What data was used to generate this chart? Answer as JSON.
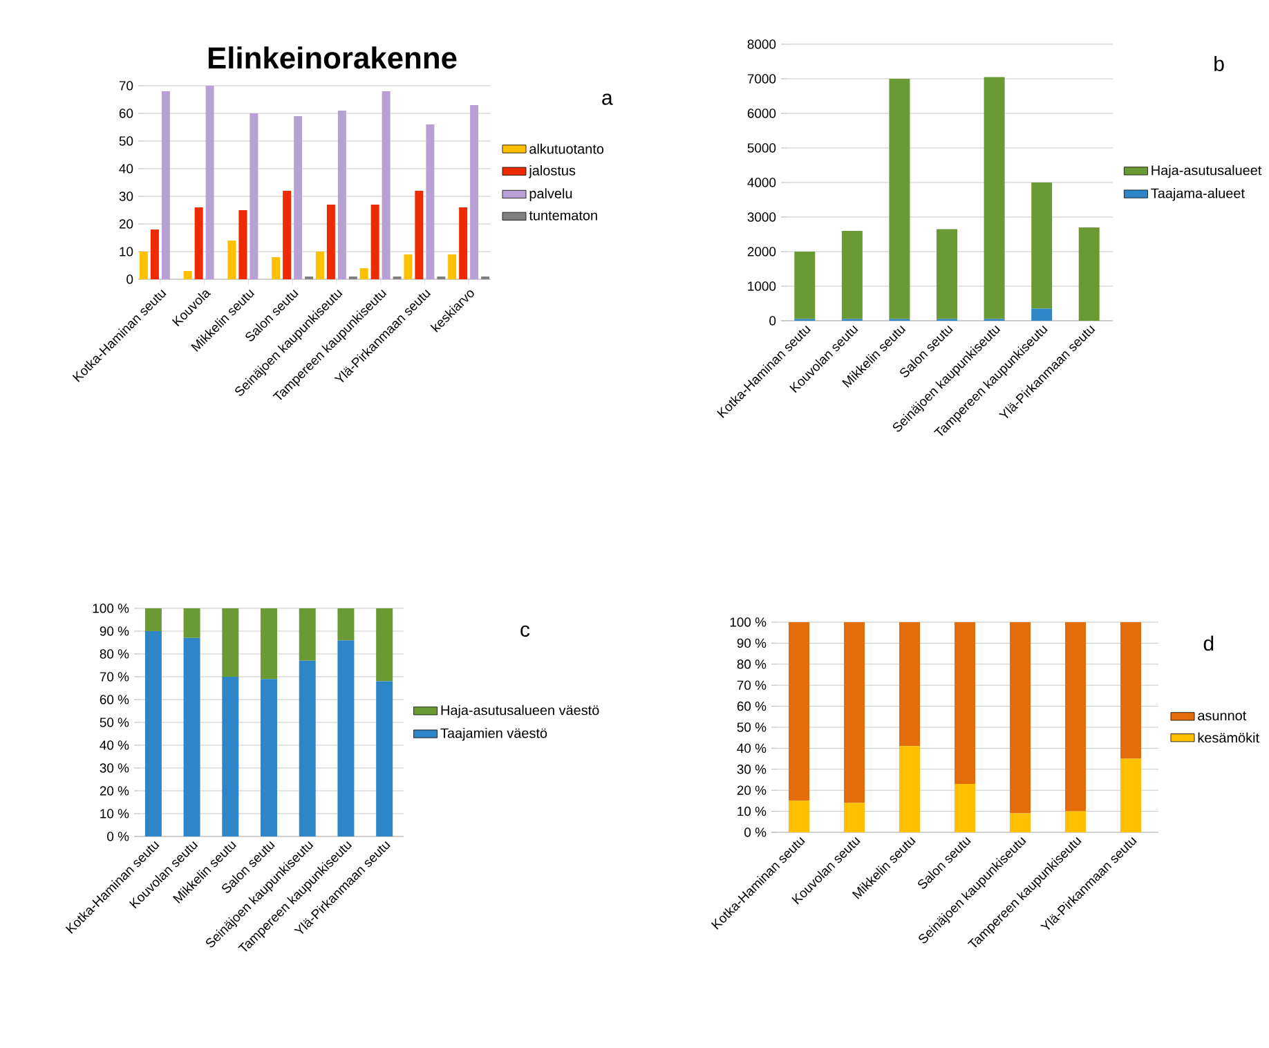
{
  "chart_data": [
    {
      "type": "bar",
      "title": "Elinkeinorakenne",
      "annotations": [
        "a"
      ],
      "categories": [
        "Kotka-Haminan seutu",
        "Kouvola",
        "Mikkelin seutu",
        "Salon seutu",
        "Seinäjoen kaupunkiseutu",
        "Tampereen kaupunkiseutu",
        "Ylä-Pirkanmaan seutu",
        "keskiarvo"
      ],
      "series": [
        {
          "name": "alkutuotanto",
          "color": "#ffc000",
          "values": [
            10,
            3,
            14,
            8,
            10,
            4,
            9,
            9
          ]
        },
        {
          "name": "jalostus",
          "color": "#ee2a00",
          "values": [
            18,
            26,
            25,
            32,
            27,
            27,
            32,
            26
          ]
        },
        {
          "name": "palvelu",
          "color": "#b7a1d4",
          "values": [
            68,
            70,
            60,
            59,
            61,
            68,
            56,
            63
          ]
        },
        {
          "name": "tuntematon",
          "color": "#7f7f7f",
          "values": [
            0,
            0,
            0,
            1,
            1,
            1,
            1,
            1
          ]
        }
      ],
      "ylim": [
        0,
        70
      ],
      "yticks": [
        0,
        10,
        20,
        30,
        40,
        50,
        60,
        70
      ],
      "grid": "y",
      "legend": "right"
    },
    {
      "type": "bar",
      "stacked": true,
      "annotations": [
        "b"
      ],
      "categories": [
        "Kotka-Haminan seutu",
        "Kouvolan seutu",
        "Mikkelin seutu",
        "Salon seutu",
        "Seinäjoen kaupunkiseutu",
        "Tampereen kaupunkiseutu",
        "Ylä-Pirkanmaan seutu"
      ],
      "series": [
        {
          "name": "Taajama-alueet",
          "color": "#2e86c8",
          "values": [
            50,
            50,
            50,
            50,
            50,
            350,
            0
          ]
        },
        {
          "name": "Haja-asutusalueet",
          "color": "#6a9a34",
          "values": [
            1950,
            2550,
            6950,
            2600,
            7000,
            3650,
            2700
          ]
        }
      ],
      "ylim": [
        0,
        8000
      ],
      "yticks": [
        0,
        1000,
        2000,
        3000,
        4000,
        5000,
        6000,
        7000,
        8000
      ],
      "grid": "y",
      "legend": "right"
    },
    {
      "type": "bar",
      "stacked": true,
      "annotations": [
        "c"
      ],
      "categories": [
        "Kotka-Haminan seutu",
        "Kouvolan seutu",
        "Mikkelin seutu",
        "Salon seutu",
        "Seinäjoen kaupunkiseutu",
        "Tampereen kaupunkiseutu",
        "Ylä-Pirkanmaan seutu"
      ],
      "series": [
        {
          "name": "Taajamien väestö",
          "color": "#2e86c8",
          "values": [
            90,
            87,
            70,
            69,
            77,
            86,
            68
          ]
        },
        {
          "name": "Haja-asutusalueen väestö",
          "color": "#6a9a34",
          "values": [
            10,
            13,
            30,
            31,
            23,
            14,
            32
          ]
        }
      ],
      "ylim": [
        0,
        100
      ],
      "yticks": [
        {
          "value": 0,
          "label": "0 %"
        },
        {
          "value": 10,
          "label": "10 %"
        },
        {
          "value": 20,
          "label": "20 %"
        },
        {
          "value": 30,
          "label": "30 %"
        },
        {
          "value": 40,
          "label": "40 %"
        },
        {
          "value": 50,
          "label": "50 %"
        },
        {
          "value": 60,
          "label": "60 %"
        },
        {
          "value": 70,
          "label": "70 %"
        },
        {
          "value": 80,
          "label": "80 %"
        },
        {
          "value": 90,
          "label": "90 %"
        },
        {
          "value": 100,
          "label": "100 %"
        }
      ],
      "grid": "y",
      "legend": "right"
    },
    {
      "type": "bar",
      "stacked": true,
      "annotations": [
        "d"
      ],
      "categories": [
        "Kotka-Haminan seutu",
        "Kouvolan seutu",
        "Mikkelin seutu",
        "Salon seutu",
        "Seinäjoen kaupunkiseutu",
        "Tampereen kaupunkiseutu",
        "Ylä-Pirkanmaan seutu"
      ],
      "series": [
        {
          "name": "kesämökit",
          "color": "#ffc000",
          "values": [
            15,
            14,
            41,
            23,
            9,
            10,
            35
          ]
        },
        {
          "name": "asunnot",
          "color": "#e46c0a",
          "values": [
            85,
            86,
            59,
            77,
            91,
            90,
            65
          ]
        }
      ],
      "ylim": [
        0,
        100
      ],
      "yticks": [
        {
          "value": 0,
          "label": "0 %"
        },
        {
          "value": 10,
          "label": "10 %"
        },
        {
          "value": 20,
          "label": "20 %"
        },
        {
          "value": 30,
          "label": "30 %"
        },
        {
          "value": 40,
          "label": "40 %"
        },
        {
          "value": 50,
          "label": "50 %"
        },
        {
          "value": 60,
          "label": "60 %"
        },
        {
          "value": 70,
          "label": "70 %"
        },
        {
          "value": 80,
          "label": "80 %"
        },
        {
          "value": 90,
          "label": "90 %"
        },
        {
          "value": 100,
          "label": "100 %"
        }
      ],
      "grid": "y",
      "legend": "right"
    }
  ]
}
